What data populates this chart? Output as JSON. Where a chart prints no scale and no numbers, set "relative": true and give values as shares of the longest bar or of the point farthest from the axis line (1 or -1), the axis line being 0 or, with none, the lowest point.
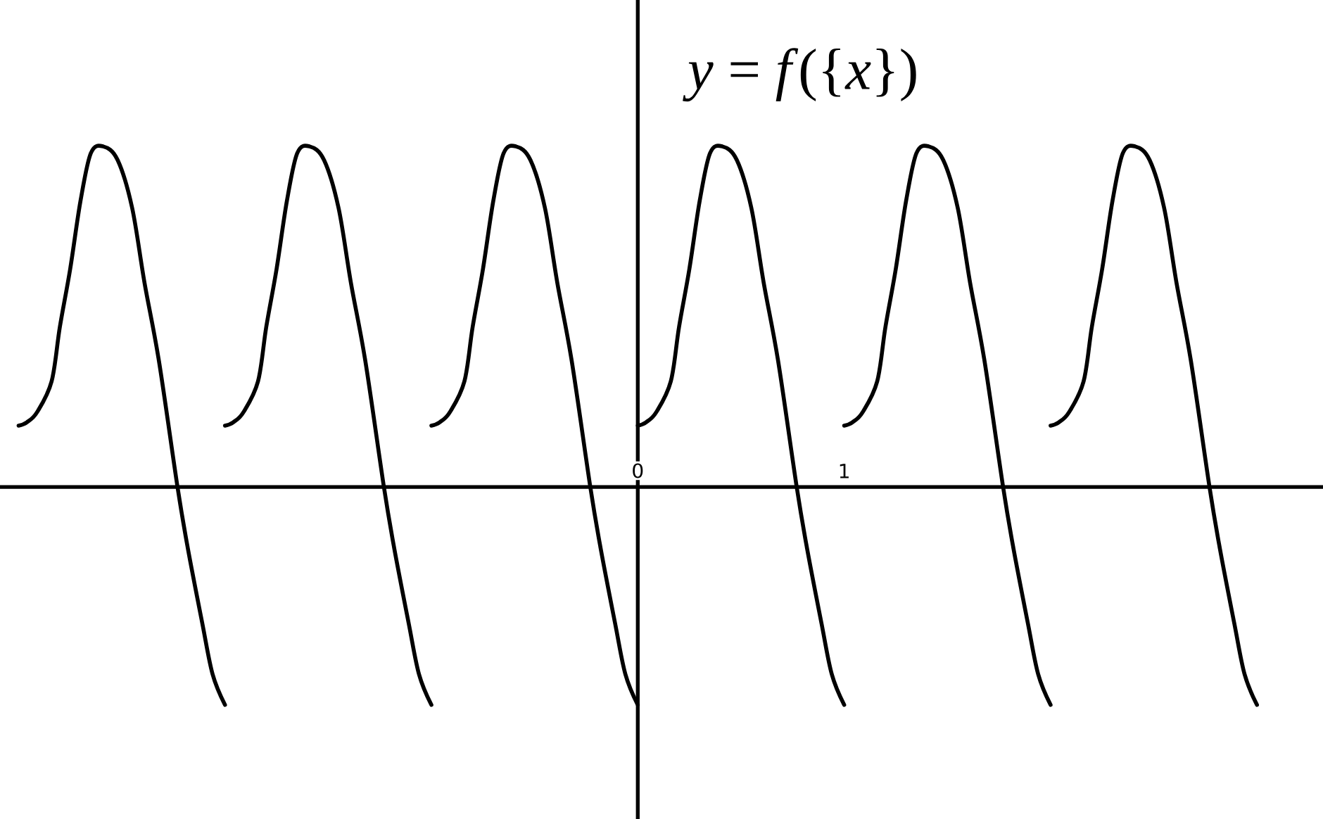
{
  "chart_data": {
    "type": "line",
    "title": "*y* = *f*({*x*})",
    "relative": true,
    "xlim": [
      -3.09,
      3.32
    ],
    "xticks": [
      0,
      1
    ],
    "marker": "none",
    "line_style": "solid",
    "series": [
      {
        "color": "#000000",
        "x": [
          -3,
          -2.96,
          -2.91,
          -2.84,
          -2.8,
          -2.75,
          -2.7,
          -2.65,
          -2.59,
          -2.52,
          -2.45,
          -2.39,
          -2.32,
          -2.23,
          -2.18,
          -2.11,
          -2.06,
          -2
        ],
        "values": [
          0.18,
          0.19,
          0.22,
          0.31,
          0.47,
          0.64,
          0.84,
          0.98,
          1,
          0.96,
          0.82,
          0.6,
          0.37,
          0,
          -0.18,
          -0.4,
          -0.55,
          -0.64
        ]
      },
      {
        "color": "#000000",
        "x": [
          -2,
          -1.96,
          -1.91,
          -1.84,
          -1.8,
          -1.75,
          -1.7,
          -1.65,
          -1.59,
          -1.52,
          -1.45,
          -1.39,
          -1.32,
          -1.23,
          -1.18,
          -1.11,
          -1.06,
          -1
        ],
        "values": [
          0.18,
          0.19,
          0.22,
          0.31,
          0.47,
          0.64,
          0.84,
          0.98,
          1,
          0.96,
          0.82,
          0.6,
          0.37,
          0,
          -0.18,
          -0.4,
          -0.55,
          -0.64
        ]
      },
      {
        "color": "#000000",
        "x": [
          -1,
          -0.96,
          -0.91,
          -0.84,
          -0.8,
          -0.75,
          -0.7,
          -0.65,
          -0.59,
          -0.52,
          -0.45,
          -0.39,
          -0.32,
          -0.23,
          -0.18,
          -0.11,
          -0.06,
          0
        ],
        "values": [
          0.18,
          0.19,
          0.22,
          0.31,
          0.47,
          0.64,
          0.84,
          0.98,
          1,
          0.96,
          0.82,
          0.6,
          0.37,
          0,
          -0.18,
          -0.4,
          -0.55,
          -0.64
        ]
      },
      {
        "color": "#000000",
        "x": [
          0,
          0.04,
          0.09,
          0.16,
          0.2,
          0.25,
          0.3,
          0.35,
          0.41,
          0.48,
          0.55,
          0.61,
          0.68,
          0.77,
          0.82,
          0.89,
          0.94,
          1
        ],
        "values": [
          0.18,
          0.19,
          0.22,
          0.31,
          0.47,
          0.64,
          0.84,
          0.98,
          1,
          0.96,
          0.82,
          0.6,
          0.37,
          0,
          -0.18,
          -0.4,
          -0.55,
          -0.64
        ]
      },
      {
        "color": "#000000",
        "x": [
          1,
          1.04,
          1.09,
          1.16,
          1.2,
          1.25,
          1.3,
          1.35,
          1.41,
          1.48,
          1.55,
          1.61,
          1.68,
          1.77,
          1.82,
          1.89,
          1.94,
          2
        ],
        "values": [
          0.18,
          0.19,
          0.22,
          0.31,
          0.47,
          0.64,
          0.84,
          0.98,
          1,
          0.96,
          0.82,
          0.6,
          0.37,
          0,
          -0.18,
          -0.4,
          -0.55,
          -0.64
        ]
      },
      {
        "color": "#000000",
        "x": [
          2,
          2.04,
          2.09,
          2.16,
          2.2,
          2.25,
          2.3,
          2.35,
          2.41,
          2.48,
          2.55,
          2.61,
          2.68,
          2.77,
          2.82,
          2.89,
          2.94,
          3
        ],
        "values": [
          0.18,
          0.19,
          0.22,
          0.31,
          0.47,
          0.64,
          0.84,
          0.98,
          1,
          0.96,
          0.82,
          0.6,
          0.37,
          0,
          -0.18,
          -0.4,
          -0.55,
          -0.64
        ]
      }
    ]
  }
}
